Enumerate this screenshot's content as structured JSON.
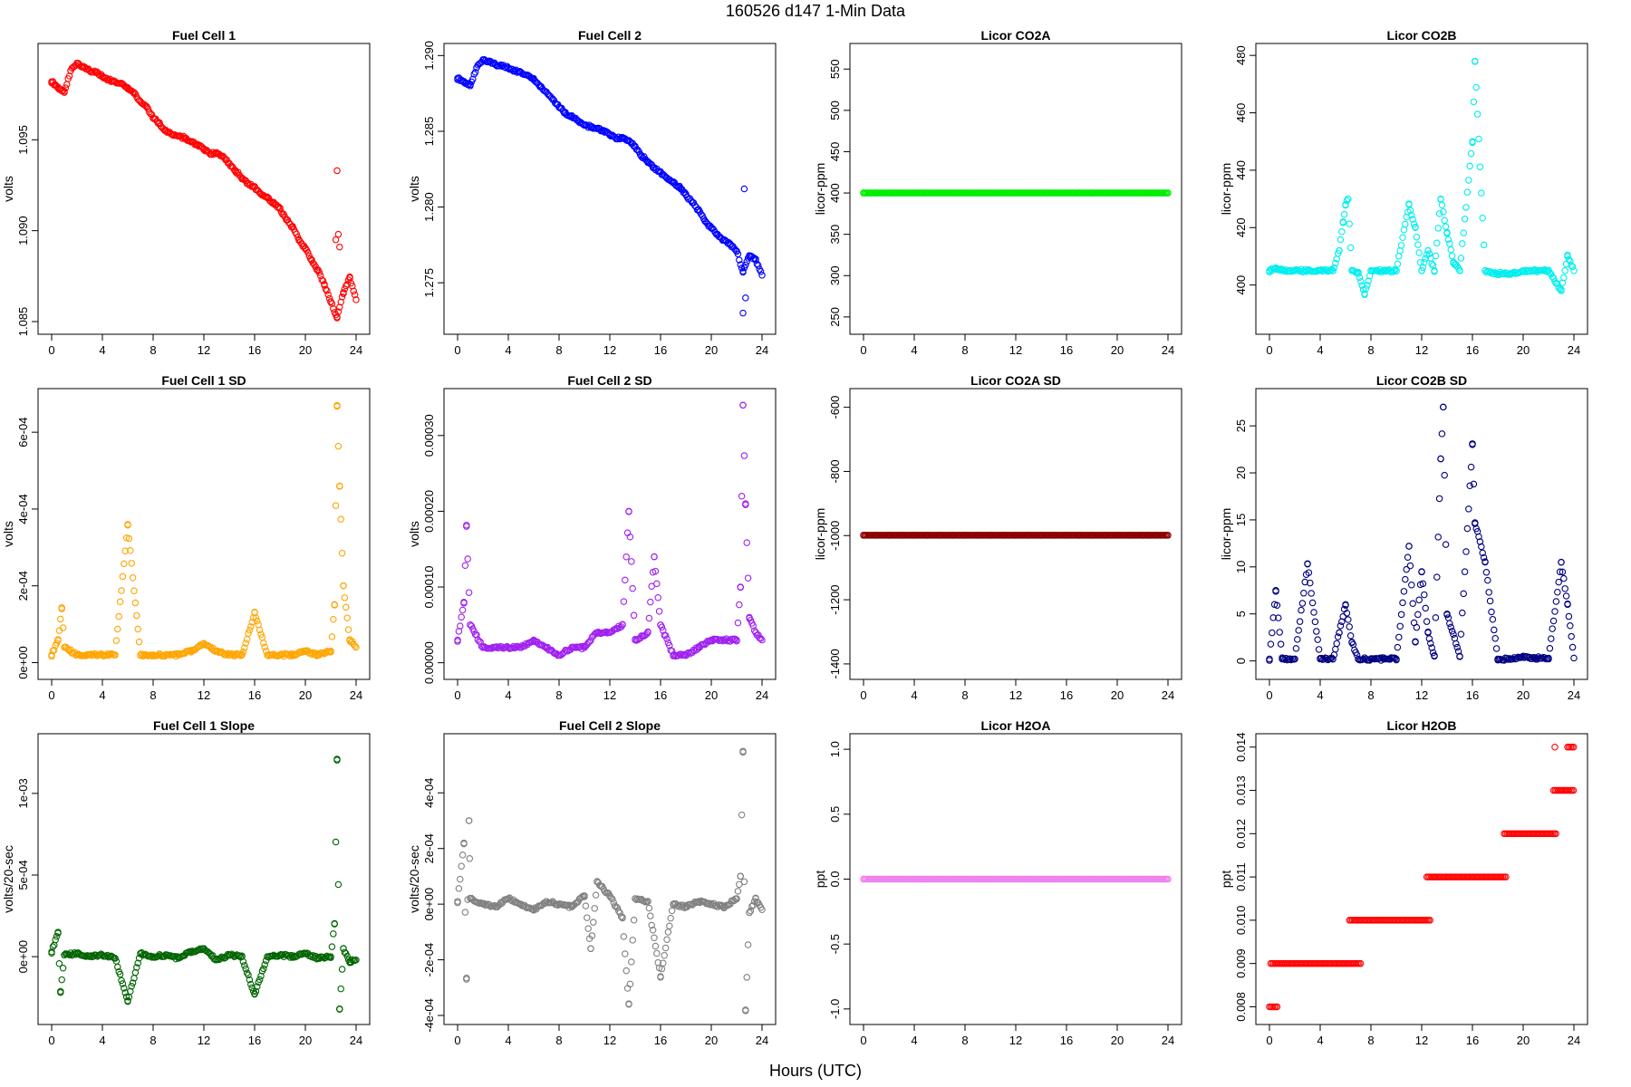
{
  "page": {
    "title": "160526   d147   1-Min Data",
    "xlabel": "Hours (UTC)"
  },
  "chart_data": [
    {
      "id": "fc1",
      "type": "scatter",
      "title": "Fuel Cell 1",
      "ylabel": "volts",
      "color": "#ff0000",
      "xlim": [
        0,
        24
      ],
      "ylim": [
        1.0848,
        1.0998
      ],
      "xticks": [
        0,
        4,
        8,
        12,
        16,
        20,
        24
      ],
      "yticks": [
        1.085,
        1.09,
        1.095
      ],
      "ytick_labels": [
        "1.085",
        "1.090",
        "1.095"
      ],
      "x": [
        0,
        0.5,
        1,
        1.5,
        2,
        2.5,
        3,
        3.5,
        4,
        4.5,
        5,
        5.5,
        6,
        6.5,
        7,
        7.5,
        8,
        8.5,
        9,
        9.5,
        10,
        10.5,
        11,
        11.5,
        12,
        12.5,
        13,
        13.5,
        14,
        14.5,
        15,
        15.5,
        16,
        16.5,
        17,
        17.5,
        18,
        18.5,
        19,
        19.5,
        20,
        20.5,
        21,
        21.5,
        22,
        22.5,
        23,
        23.5,
        24
      ],
      "y": [
        1.0982,
        1.0979,
        1.0976,
        1.0988,
        1.0992,
        1.099,
        1.0988,
        1.0987,
        1.0985,
        1.0983,
        1.0982,
        1.0981,
        1.0978,
        1.0976,
        1.0971,
        1.0968,
        1.0962,
        1.0959,
        1.0955,
        1.0953,
        1.0952,
        1.0951,
        1.0949,
        1.0947,
        1.0945,
        1.0942,
        1.0943,
        1.0941,
        1.0937,
        1.0933,
        1.0929,
        1.0926,
        1.0924,
        1.092,
        1.0918,
        1.0915,
        1.0912,
        1.0906,
        1.0902,
        1.0895,
        1.089,
        1.0884,
        1.0878,
        1.087,
        1.0861,
        1.0852,
        1.0866,
        1.0874,
        1.0862
      ],
      "outliers": [
        [
          22.5,
          1.0933
        ],
        [
          22.6,
          1.0898
        ],
        [
          22.4,
          1.0895
        ],
        [
          22.7,
          1.0891
        ]
      ]
    },
    {
      "id": "fc2",
      "type": "scatter",
      "title": "Fuel Cell 2",
      "ylabel": "volts",
      "color": "#0000ff",
      "xlim": [
        0,
        24
      ],
      "ylim": [
        1.2722,
        1.2902
      ],
      "xticks": [
        0,
        4,
        8,
        12,
        16,
        20,
        24
      ],
      "yticks": [
        1.275,
        1.28,
        1.285,
        1.29
      ],
      "ytick_labels": [
        "1.275",
        "1.280",
        "1.285",
        "1.290"
      ],
      "x": [
        0,
        0.5,
        1,
        1.5,
        2,
        2.5,
        3,
        3.5,
        4,
        4.5,
        5,
        5.5,
        6,
        6.5,
        7,
        7.5,
        8,
        8.5,
        9,
        9.5,
        10,
        10.5,
        11,
        11.5,
        12,
        12.5,
        13,
        13.5,
        14,
        14.5,
        15,
        15.5,
        16,
        16.5,
        17,
        17.5,
        18,
        18.5,
        19,
        19.5,
        20,
        20.5,
        21,
        21.5,
        22,
        22.5,
        23,
        23.5,
        24
      ],
      "y": [
        1.2885,
        1.2883,
        1.288,
        1.2892,
        1.2897,
        1.2896,
        1.2894,
        1.2893,
        1.2892,
        1.289,
        1.2889,
        1.2887,
        1.2884,
        1.288,
        1.2876,
        1.2871,
        1.2866,
        1.2862,
        1.286,
        1.2857,
        1.2854,
        1.2853,
        1.2852,
        1.285,
        1.2848,
        1.2845,
        1.2846,
        1.2844,
        1.284,
        1.2834,
        1.283,
        1.2826,
        1.2823,
        1.2819,
        1.2816,
        1.2813,
        1.2808,
        1.2803,
        1.2798,
        1.2791,
        1.2786,
        1.2782,
        1.2778,
        1.2775,
        1.2771,
        1.2757,
        1.2768,
        1.2765,
        1.2755
      ],
      "outliers": [
        [
          22.6,
          1.2812
        ],
        [
          22.5,
          1.273
        ],
        [
          22.7,
          1.274
        ]
      ]
    },
    {
      "id": "co2a",
      "type": "scatter",
      "title": "Licor CO2A",
      "ylabel": "licor-ppm",
      "color": "#00ee00",
      "xlim": [
        0,
        24
      ],
      "ylim": [
        240,
        570
      ],
      "xticks": [
        0,
        4,
        8,
        12,
        16,
        20,
        24
      ],
      "yticks": [
        250,
        300,
        350,
        400,
        450,
        500,
        550
      ],
      "ytick_labels": [
        "250",
        "300",
        "350",
        "400",
        "450",
        "500",
        "550"
      ],
      "x": [
        0,
        1,
        2,
        3,
        4,
        5,
        6,
        7,
        8,
        9,
        10,
        11,
        12,
        13,
        14,
        15,
        16,
        17,
        18,
        19,
        20,
        21,
        22,
        22.5,
        23,
        24
      ],
      "y": [
        400,
        400,
        400,
        400,
        400,
        400,
        400,
        400,
        400,
        400,
        400,
        400,
        400,
        400,
        400,
        400,
        400,
        400,
        400,
        400,
        400,
        400,
        400,
        400,
        400,
        400
      ]
    },
    {
      "id": "co2b",
      "type": "scatter",
      "title": "Licor CO2B",
      "ylabel": "licor-ppm",
      "color": "#00eeee",
      "xlim": [
        0,
        24
      ],
      "ylim": [
        386,
        481
      ],
      "xticks": [
        0,
        4,
        8,
        12,
        16,
        20,
        24
      ],
      "yticks": [
        400,
        420,
        440,
        460,
        480
      ],
      "ytick_labels": [
        "400",
        "420",
        "440",
        "460",
        "480"
      ],
      "x": [
        0,
        0.5,
        1,
        2,
        3,
        4,
        5,
        5.5,
        5.8,
        6,
        6.2,
        6.5,
        7,
        7.5,
        8,
        9,
        10,
        11,
        11.5,
        12,
        12.5,
        13,
        13.5,
        14,
        14.5,
        15,
        16,
        16.2,
        17,
        18,
        19,
        20,
        21,
        22,
        23,
        23.5,
        24
      ],
      "y": [
        405,
        406,
        405,
        405,
        405,
        405,
        405,
        412,
        422,
        428,
        430,
        405,
        404,
        397,
        405,
        405,
        405,
        428,
        420,
        405,
        412,
        405,
        430,
        418,
        408,
        405,
        450,
        478,
        405,
        404,
        404,
        405,
        405,
        405,
        398,
        410,
        405
      ]
    },
    {
      "id": "fc1sd",
      "type": "scatter",
      "title": "Fuel Cell 1 SD",
      "ylabel": "volts",
      "color": "#ffa500",
      "xlim": [
        0,
        24
      ],
      "ylim": [
        -2e-05,
        0.00069
      ],
      "xticks": [
        0,
        4,
        8,
        12,
        16,
        20,
        24
      ],
      "yticks": [
        0,
        0.0002,
        0.0004,
        0.0006
      ],
      "ytick_labels": [
        "0e+00",
        "2e-04",
        "4e-04",
        "6e-04"
      ],
      "x": [
        0,
        0.5,
        0.8,
        1,
        2,
        3,
        4,
        5,
        6,
        7,
        8,
        9,
        10,
        11,
        12,
        13,
        14,
        15,
        16,
        17,
        18,
        19,
        20,
        21,
        22,
        22.3,
        22.5,
        22.7,
        23,
        23.5,
        24
      ],
      "y": [
        2e-05,
        6e-05,
        0.00014,
        4e-05,
        2e-05,
        2e-05,
        2e-05,
        2e-05,
        0.00036,
        2e-05,
        2e-05,
        2e-05,
        2e-05,
        3e-05,
        5e-05,
        3e-05,
        2e-05,
        2e-05,
        0.00013,
        2e-05,
        2e-05,
        2e-05,
        3e-05,
        2e-05,
        3e-05,
        0.00015,
        0.00067,
        0.00046,
        0.0002,
        6e-05,
        4e-05
      ]
    },
    {
      "id": "fc2sd",
      "type": "scatter",
      "title": "Fuel Cell 2 SD",
      "ylabel": "volts",
      "color": "#a020f0",
      "xlim": [
        0,
        24
      ],
      "ylim": [
        -1e-05,
        0.00035
      ],
      "xticks": [
        0,
        4,
        8,
        12,
        16,
        20,
        24
      ],
      "yticks": [
        0,
        0.0001,
        0.0002,
        0.0003
      ],
      "ytick_labels": [
        "0.00000",
        "0.00010",
        "0.00020",
        "0.00030"
      ],
      "x": [
        0,
        0.5,
        0.7,
        1,
        2,
        3,
        4,
        5,
        6,
        7,
        8,
        9,
        10,
        11,
        12,
        13,
        13.5,
        14,
        15,
        15.5,
        16,
        17,
        18,
        19,
        20,
        21,
        22,
        22.3,
        22.5,
        22.7,
        23,
        23.5,
        24
      ],
      "y": [
        3e-05,
        8e-05,
        0.00018,
        5e-05,
        2e-05,
        2e-05,
        2e-05,
        2e-05,
        3e-05,
        2e-05,
        1e-05,
        2e-05,
        2e-05,
        4e-05,
        4e-05,
        5e-05,
        0.0002,
        3e-05,
        4e-05,
        0.00014,
        5e-05,
        1e-05,
        1e-05,
        2e-05,
        3e-05,
        3e-05,
        3e-05,
        0.0001,
        0.00034,
        0.00021,
        6e-05,
        4e-05,
        3e-05
      ]
    },
    {
      "id": "co2asd",
      "type": "scatter",
      "title": "Licor CO2A SD",
      "ylabel": "licor-ppm",
      "color": "#8b0000",
      "xlim": [
        0,
        24
      ],
      "ylim": [
        -1420,
        -570
      ],
      "xticks": [
        0,
        4,
        8,
        12,
        16,
        20,
        24
      ],
      "yticks": [
        -1400,
        -1200,
        -1000,
        -800,
        -600
      ],
      "ytick_labels": [
        "-1400",
        "-1200",
        "-1000",
        "-800",
        "-600"
      ],
      "x": [
        0,
        1,
        2,
        3,
        4,
        5,
        6,
        7,
        8,
        9,
        10,
        11,
        12,
        13,
        14,
        15,
        16,
        17,
        18,
        19,
        20,
        21,
        22,
        22.5,
        23,
        24
      ],
      "y": [
        -999,
        -999,
        -999,
        -999,
        -999,
        -999,
        -999,
        -999,
        -999,
        -999,
        -999,
        -999,
        -999,
        -999,
        -999,
        -999,
        -999,
        -999,
        -999,
        -999,
        -999,
        -999,
        -999,
        -999,
        -999,
        -999
      ]
    },
    {
      "id": "co2bsd",
      "type": "scatter",
      "title": "Licor CO2B SD",
      "ylabel": "licor-ppm",
      "color": "#000080",
      "xlim": [
        0,
        24
      ],
      "ylim": [
        -1,
        28
      ],
      "xticks": [
        0,
        4,
        8,
        12,
        16,
        20,
        24
      ],
      "yticks": [
        0,
        5,
        10,
        15,
        20,
        25
      ],
      "ytick_labels": [
        "0",
        "5",
        "10",
        "15",
        "20",
        "25"
      ],
      "x": [
        0,
        0.5,
        1,
        2,
        3,
        4,
        5,
        5.5,
        6,
        6.5,
        7,
        8,
        9,
        10,
        11,
        11.5,
        12,
        12.5,
        13,
        13.5,
        13.7,
        14,
        15,
        16,
        16.2,
        17,
        18,
        19,
        20,
        21,
        22,
        23,
        23.5,
        24
      ],
      "y": [
        0.2,
        7.5,
        0.2,
        0.2,
        10.3,
        0.2,
        0.2,
        3,
        6,
        2,
        0.2,
        0.2,
        0.2,
        0.2,
        12.2,
        2,
        9.5,
        3,
        0.5,
        21.5,
        27,
        5,
        0.5,
        23,
        14.7,
        10.5,
        0.2,
        0.2,
        0.5,
        0.3,
        0.3,
        10.5,
        6,
        0.3
      ]
    },
    {
      "id": "fc1slope",
      "type": "scatter",
      "title": "Fuel Cell 1 Slope",
      "ylabel": "volts/20-sec",
      "color": "#006400",
      "xlim": [
        0,
        24
      ],
      "ylim": [
        -0.00036,
        0.00131
      ],
      "xticks": [
        0,
        4,
        8,
        12,
        16,
        20,
        24
      ],
      "yticks": [
        0,
        0.0005,
        0.001
      ],
      "ytick_labels": [
        "0e+00",
        "5e-04",
        "1e-03"
      ],
      "x": [
        0,
        0.5,
        0.7,
        1,
        2,
        3,
        4,
        5,
        6,
        7,
        8,
        9,
        10,
        11,
        12,
        13,
        14,
        15,
        16,
        17,
        18,
        19,
        20,
        21,
        22,
        22.3,
        22.5,
        22.7,
        23,
        23.5,
        24
      ],
      "y": [
        3e-05,
        0.00015,
        -0.00022,
        1e-05,
        2e-05,
        0.0,
        1e-05,
        -1e-05,
        -0.00027,
        2e-05,
        0.0,
        1e-05,
        -1e-05,
        3e-05,
        5e-05,
        -2e-05,
        1e-05,
        0.0,
        -0.00023,
        0.0,
        1e-05,
        0.0,
        2e-05,
        -1e-05,
        0.0,
        0.0002,
        0.00121,
        -0.00032,
        5e-05,
        -3e-05,
        -2e-05
      ]
    },
    {
      "id": "fc2slope",
      "type": "scatter",
      "title": "Fuel Cell 2 Slope",
      "ylabel": "volts/20-sec",
      "color": "#808080",
      "xlim": [
        0,
        24
      ],
      "ylim": [
        -0.0004,
        0.00058
      ],
      "xticks": [
        0,
        4,
        8,
        12,
        16,
        20,
        24
      ],
      "yticks": [
        -0.0004,
        -0.0002,
        0,
        0.0002,
        0.0004
      ],
      "ytick_labels": [
        "-4e-04",
        "-2e-04",
        "0e+00",
        "2e-04",
        "4e-04"
      ],
      "x": [
        0,
        0.5,
        0.7,
        0.9,
        1,
        2,
        3,
        4,
        5,
        6,
        7,
        8,
        9,
        10,
        10.5,
        11,
        12,
        13,
        13.5,
        14,
        15,
        16,
        17,
        18,
        19,
        20,
        21,
        22,
        22.3,
        22.5,
        22.7,
        23,
        23.5,
        24
      ],
      "y": [
        1e-05,
        0.00022,
        -0.00027,
        0.0003,
        2e-05,
        0.0,
        -1e-05,
        2e-05,
        0.0,
        -2e-05,
        1e-05,
        0.0,
        -1e-05,
        3e-05,
        -0.00016,
        8e-05,
        3e-05,
        -5e-05,
        -0.00036,
        2e-05,
        1e-05,
        -0.00026,
        0.0,
        -1e-05,
        1e-05,
        0.0,
        -1e-05,
        2e-05,
        0.0001,
        0.00055,
        -0.00038,
        -3e-05,
        2e-05,
        -2e-05
      ]
    },
    {
      "id": "h2oa",
      "type": "scatter",
      "title": "Licor H2OA",
      "ylabel": "ppt",
      "color": "#ee82ee",
      "xlim": [
        0,
        24
      ],
      "ylim": [
        -1.05,
        1.05
      ],
      "xticks": [
        0,
        4,
        8,
        12,
        16,
        20,
        24
      ],
      "yticks": [
        -1,
        -0.5,
        0,
        0.5,
        1
      ],
      "ytick_labels": [
        "-1.0",
        "-0.5",
        "0.0",
        "0.5",
        "1.0"
      ],
      "x": [
        0,
        1,
        2,
        3,
        4,
        5,
        6,
        7,
        8,
        9,
        10,
        11,
        12,
        13,
        14,
        15,
        16,
        17,
        18,
        19,
        20,
        21,
        22,
        22.5,
        23,
        24
      ],
      "y": [
        0,
        0,
        0,
        0,
        0,
        0,
        0,
        0,
        0,
        0,
        0,
        0,
        0,
        0,
        0,
        0,
        0,
        0,
        0,
        0,
        0,
        0,
        0,
        0,
        0,
        0
      ]
    },
    {
      "id": "h2ob",
      "type": "scatter",
      "title": "Licor H2OB",
      "ylabel": "ppt",
      "color": "#ff0000",
      "xlim": [
        0,
        24
      ],
      "ylim": [
        0.0078,
        0.0141
      ],
      "xticks": [
        0,
        4,
        8,
        12,
        16,
        20,
        24
      ],
      "yticks": [
        0.008,
        0.009,
        0.01,
        0.011,
        0.012,
        0.013,
        0.014
      ],
      "ytick_labels": [
        "0.008",
        "0.009",
        "0.010",
        "0.011",
        "0.012",
        "0.013",
        "0.014"
      ],
      "segments": [
        [
          0,
          0.6,
          0.008
        ],
        [
          0.1,
          7.2,
          0.009
        ],
        [
          6.3,
          12.7,
          0.01
        ],
        [
          12.4,
          18.7,
          0.011
        ],
        [
          18.5,
          22.6,
          0.012
        ],
        [
          22.4,
          24,
          0.013
        ],
        [
          23.5,
          24,
          0.014
        ]
      ],
      "outliers": [
        [
          22.5,
          0.014
        ]
      ]
    }
  ]
}
